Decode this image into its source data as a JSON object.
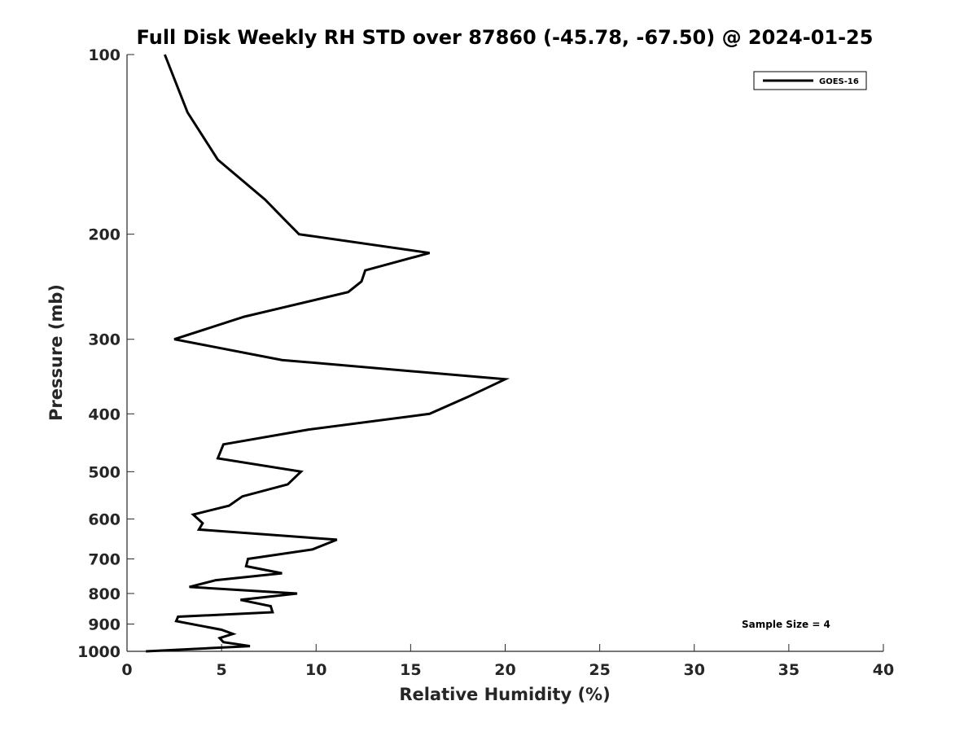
{
  "chart_data": {
    "type": "line",
    "title": "Full Disk Weekly RH STD over 87860 (-45.78, -67.50) @ 2024-01-25",
    "xlabel": "Relative Humidity (%)",
    "ylabel": "Pressure (mb)",
    "xlim": [
      0,
      40
    ],
    "ylim": [
      1000,
      100
    ],
    "y_scale": "log",
    "x_ticks": [
      "0",
      "5",
      "10",
      "15",
      "20",
      "25",
      "30",
      "35",
      "40"
    ],
    "y_ticks": [
      "100",
      "200",
      "300",
      "400",
      "500",
      "600",
      "700",
      "800",
      "900",
      "1000"
    ],
    "legend": {
      "position": "top-right",
      "entries": [
        "GOES-16"
      ]
    },
    "annotation": "Sample Size = 4",
    "series": [
      {
        "name": "GOES-16",
        "color": "#000000",
        "points": [
          [
            2.0,
            100
          ],
          [
            3.2,
            125
          ],
          [
            4.8,
            150
          ],
          [
            7.3,
            175
          ],
          [
            8.4,
            190
          ],
          [
            9.1,
            200
          ],
          [
            16.0,
            215
          ],
          [
            12.6,
            230
          ],
          [
            12.4,
            240
          ],
          [
            11.7,
            250
          ],
          [
            6.2,
            275
          ],
          [
            2.5,
            300
          ],
          [
            8.2,
            325
          ],
          [
            20.0,
            350
          ],
          [
            18.0,
            375
          ],
          [
            16.0,
            400
          ],
          [
            9.6,
            425
          ],
          [
            5.1,
            450
          ],
          [
            4.8,
            475
          ],
          [
            9.2,
            500
          ],
          [
            8.5,
            525
          ],
          [
            6.1,
            550
          ],
          [
            5.4,
            570
          ],
          [
            3.5,
            590
          ],
          [
            4.0,
            610
          ],
          [
            3.8,
            625
          ],
          [
            11.1,
            650
          ],
          [
            9.8,
            675
          ],
          [
            6.4,
            700
          ],
          [
            6.3,
            720
          ],
          [
            8.2,
            740
          ],
          [
            4.7,
            760
          ],
          [
            3.3,
            780
          ],
          [
            9.0,
            800
          ],
          [
            6.0,
            820
          ],
          [
            7.6,
            840
          ],
          [
            7.7,
            860
          ],
          [
            2.7,
            875
          ],
          [
            2.6,
            890
          ],
          [
            5.0,
            920
          ],
          [
            5.6,
            935
          ],
          [
            4.9,
            950
          ],
          [
            5.1,
            965
          ],
          [
            6.5,
            980
          ],
          [
            1.0,
            1000
          ]
        ]
      }
    ]
  }
}
